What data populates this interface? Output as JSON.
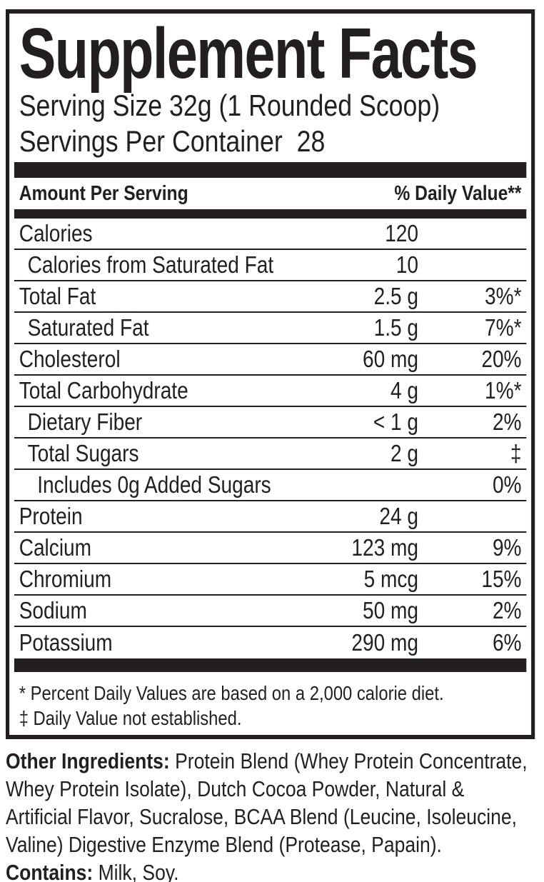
{
  "colors": {
    "ink": "#231f20",
    "background": "#ffffff"
  },
  "label": {
    "title": "Supplement Facts",
    "serving_size": "Serving Size 32g (1 Rounded Scoop)",
    "servings_per_container": "Servings Per Container  28",
    "header": {
      "amount_per_serving": "Amount Per Serving",
      "daily_value": "% Daily Value**"
    },
    "rows": [
      {
        "name": "Calories",
        "amount": "120",
        "dv": "",
        "indent": 0
      },
      {
        "name": "Calories from Saturated Fat",
        "amount": "10",
        "dv": "",
        "indent": 1
      },
      {
        "name": "Total Fat",
        "amount": "2.5 g",
        "dv": "3%*",
        "indent": 0
      },
      {
        "name": "Saturated Fat",
        "amount": "1.5 g",
        "dv": "7%*",
        "indent": 1
      },
      {
        "name": "Cholesterol",
        "amount": "60 mg",
        "dv": "20%",
        "indent": 0
      },
      {
        "name": "Total Carbohydrate",
        "amount": "4 g",
        "dv": "1%*",
        "indent": 0
      },
      {
        "name": "Dietary Fiber",
        "amount": "< 1 g",
        "dv": "2%",
        "indent": 1
      },
      {
        "name": "Total Sugars",
        "amount": "2 g",
        "dv": "‡",
        "indent": 1
      },
      {
        "name": "Includes 0g Added Sugars",
        "amount": "",
        "dv": "0%",
        "indent": 2
      },
      {
        "name": "Protein",
        "amount": "24 g",
        "dv": "",
        "indent": 0
      },
      {
        "name": "Calcium",
        "amount": "123 mg",
        "dv": "9%",
        "indent": 0
      },
      {
        "name": "Chromium",
        "amount": "5 mcg",
        "dv": "15%",
        "indent": 0
      },
      {
        "name": "Sodium",
        "amount": "50 mg",
        "dv": "2%",
        "indent": 0
      },
      {
        "name": "Potassium",
        "amount": "290 mg",
        "dv": "6%",
        "indent": 0
      }
    ],
    "footnotes": [
      "* Percent Daily Values are based on a 2,000 calorie diet.",
      "‡ Daily Value not established."
    ],
    "other_ingredients_label": "Other Ingredients:",
    "other_ingredients_text": " Protein Blend (Whey Protein Concentrate, Whey Protein Isolate), Dutch Cocoa Powder, Natural & Artificial Flavor, Sucralose, BCAA Blend (Leucine, Isoleucine, Valine) Digestive Enzyme Blend (Protease, Papain).",
    "contains_label": "Contains:",
    "contains_text": " Milk, Soy."
  }
}
